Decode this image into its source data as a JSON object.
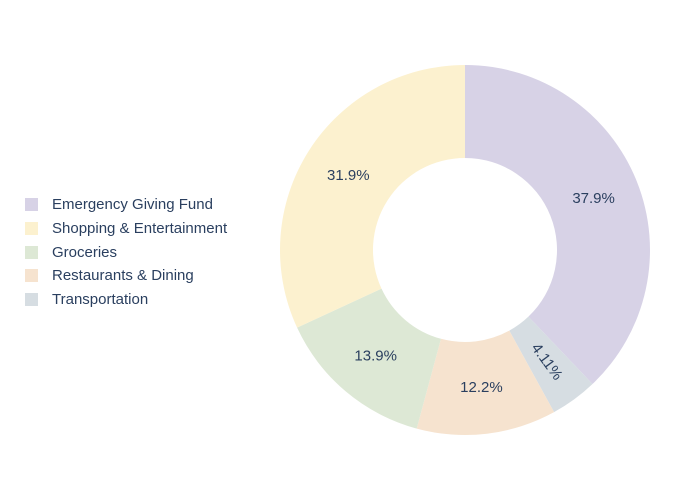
{
  "chart_data": {
    "type": "pie",
    "hole": true,
    "title": "",
    "legend_position": "left",
    "slices": [
      {
        "label": "Emergency Giving Fund",
        "value": 37.9,
        "display": "37.9%",
        "color": "#d7d2e6"
      },
      {
        "label": "Transportation",
        "value": 4.11,
        "display": "4.11%",
        "color": "#d6dde2"
      },
      {
        "label": "Restaurants & Dining",
        "value": 12.2,
        "display": "12.2%",
        "color": "#f6e3cf"
      },
      {
        "label": "Groceries",
        "value": 13.9,
        "display": "13.9%",
        "color": "#dde8d5"
      },
      {
        "label": "Shopping & Entertainment",
        "value": 31.9,
        "display": "31.9%",
        "color": "#fcf1cf"
      }
    ],
    "legend": [
      {
        "label": "Emergency Giving Fund",
        "color": "#d7d2e6"
      },
      {
        "label": "Shopping & Entertainment",
        "color": "#fcf1cf"
      },
      {
        "label": "Groceries",
        "color": "#dde8d5"
      },
      {
        "label": "Restaurants & Dining",
        "color": "#f6e3cf"
      },
      {
        "label": "Transportation",
        "color": "#d6dde2"
      }
    ]
  }
}
